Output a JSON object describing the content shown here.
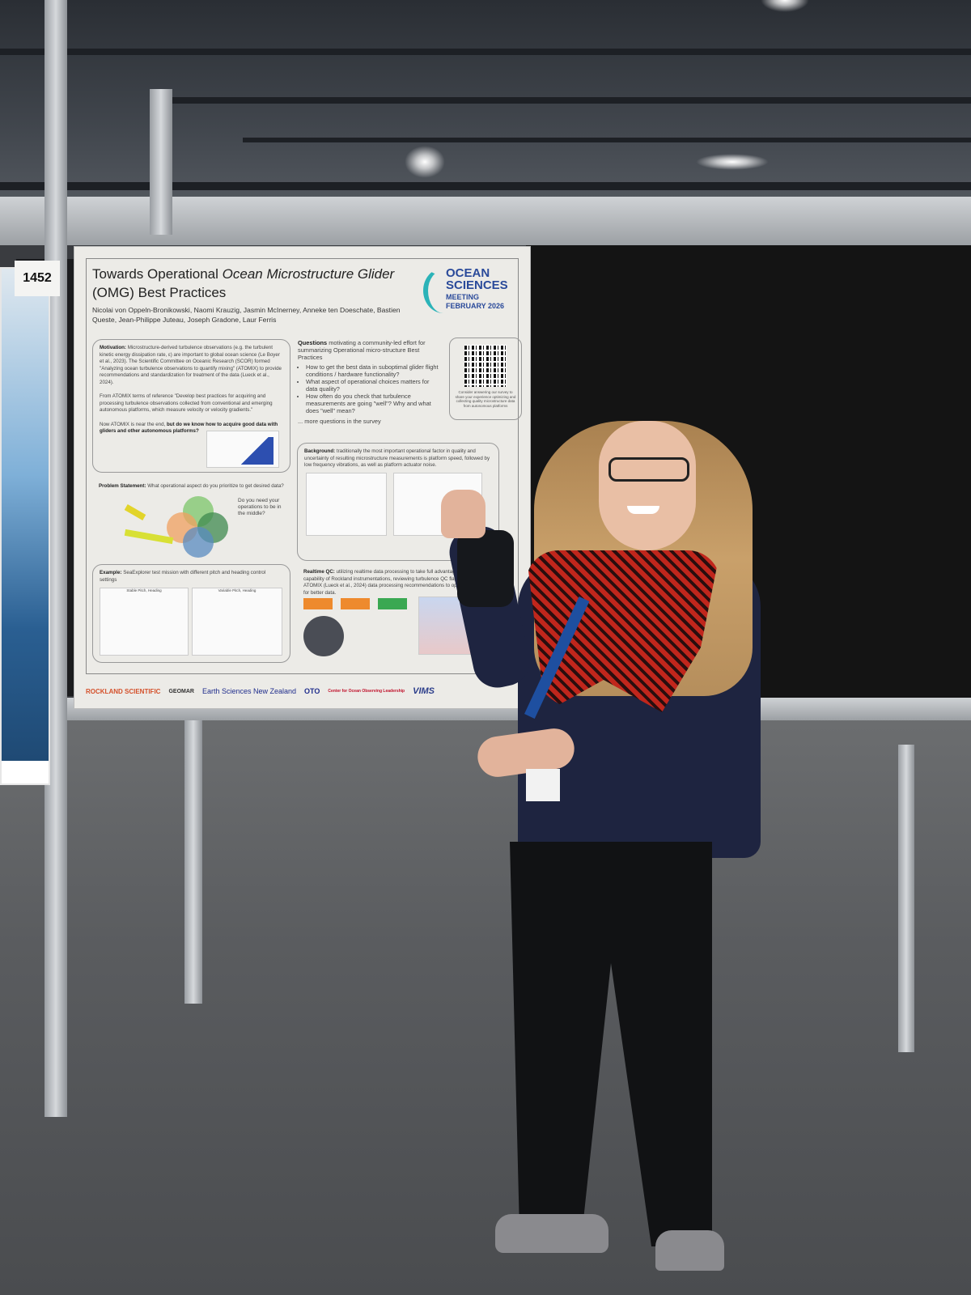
{
  "booth": {
    "number": "1452"
  },
  "poster": {
    "title_plain": "Towards Operational",
    "title_italic": "Ocean Microstructure Glider",
    "title_line2": "(OMG) Best Practices",
    "authors": "Nicolai von Oppeln-Bronikowski, Naomi Krauzig, Jasmin McInerney, Anneke ten Doeschate, Bastien Queste, Jean-Philippe Juteau, Joseph Gradone, Laur Ferris",
    "conference_logo": {
      "line1": "OCEAN",
      "line2": "SCIENCES",
      "line3": "MEETING",
      "line4": "FEBRUARY 2026"
    },
    "motivation": {
      "label": "Motivation:",
      "text": "Microstructure-derived turbulence observations (e.g. the turbulent kinetic energy dissipation rate, ε) are important to global ocean science (Le Boyer et al., 2023). The Scientific Committee on Oceanic Research (SCOR) formed \"Analyzing ocean turbulence observations to quantify mixing\" (ATOMIX) to provide recommendations and standardization for treatment of the data (Lueck et al., 2024).",
      "text2": "From ATOMIX terms of reference \"Develop best practices for acquiring and processing turbulence observations collected from conventional and emerging autonomous platforms, which measure velocity or velocity gradients.\"",
      "text3_plain": "Now ATOMIX is near the end,",
      "text3_bold": "but do we know how to acquire good data with gliders and other autonomous platforms?"
    },
    "questions": {
      "label": "Questions",
      "intro": "motivating a community-led effort for summarizing Operational micro-structure Best Practices",
      "items": [
        "How to get the best data in suboptimal glider flight conditions / hardware functionality?",
        "What aspect of operational choices matters for data quality?",
        "How often do you check that turbulence measurements are going \"well\"? Why and what does \"well\" mean?"
      ],
      "more": "... more questions in the survey",
      "qr_caption": "Consider answering our survey to share your experience optimizing and collecting quality microstructure data from autonomous platforms"
    },
    "problem": {
      "label": "Problem Statement:",
      "text": "What operational aspect do you prioritize to get desired data?",
      "callout": "Do you need your operations to be in the middle?"
    },
    "background": {
      "label": "Background:",
      "text": "traditionally the most important operational factor in quality and uncertainty of resulting microstructure measurements is platform speed, followed by low frequency vibrations, as well as platform actuator noise."
    },
    "example": {
      "label": "Example:",
      "text": "SeaExplorer test mission with different pitch and heading control settings",
      "panel_left": "Stable Pitch, Heading",
      "panel_right": "Variable Pitch, Heading"
    },
    "realtime_qc": {
      "label": "Realtime QC:",
      "text": "utilizing realtime data processing to take full advantage of the capability of Rockland instrumentations, reviewing turbulence QC flags following ATOMIX (Lueck et al., 2024) data processing recommendations to optimize behavior for better data."
    },
    "sponsors": [
      "ROCKLAND SCIENTIFIC",
      "GEOMAR",
      "Earth Sciences New Zealand",
      "OTO",
      "Center for Ocean Observing Leadership",
      "VIMS"
    ]
  },
  "colors": {
    "poster_bg": "#ecebe7",
    "accent_orange": "#ee8a2d",
    "accent_green": "#3aa852",
    "logo_blue": "#2a4a9a",
    "logo_teal": "#2bb3b8",
    "scarf_red": "#c0261c",
    "lanyard_blue": "#1e4fa0"
  }
}
